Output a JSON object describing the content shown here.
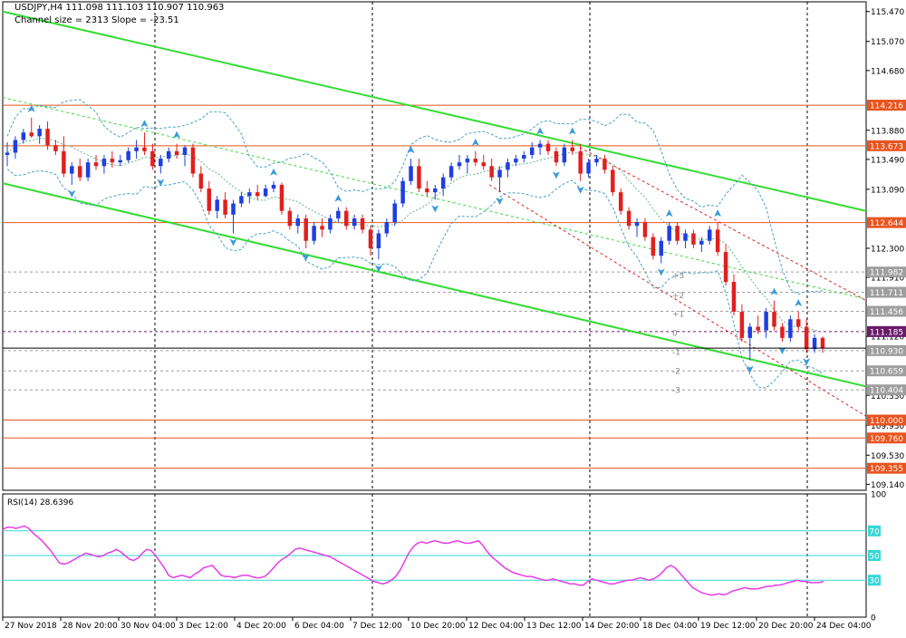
{
  "header": {
    "title": "USDJPY,H4  111.098 111.103 110.907 110.963",
    "channel": "Channel size = 2313 Slope = -23.51"
  },
  "chart_data": {
    "type": "candlestick",
    "symbol": "USDJPY",
    "timeframe": "H4",
    "ohlc_last": {
      "open": 111.098,
      "high": 111.103,
      "low": 110.907,
      "close": 110.963
    },
    "channel_size": 2313,
    "slope": -23.51,
    "price_axis_labels": [
      "115.470",
      "115.070",
      "114.680",
      "113.880",
      "113.490",
      "113.090",
      "112.300",
      "111.910",
      "111.120",
      "110.330",
      "109.930",
      "109.530",
      "109.140"
    ],
    "ylim": [
      109.06,
      115.6
    ],
    "time_labels": [
      "27 Nov 2018",
      "28 Nov 20:00",
      "30 Nov 04:00",
      "3 Dec 12:00",
      "4 Dec 20:00",
      "6 Dec 04:00",
      "7 Dec 12:00",
      "10 Dec 20:00",
      "12 Dec 04:00",
      "13 Dec 12:00",
      "14 Dec 20:00",
      "18 Dec 04:00",
      "19 Dec 12:00",
      "20 Dec 20:00",
      "24 Dec 04:00"
    ],
    "price_levels": [
      {
        "value": 114.216,
        "label": "114.216",
        "color": "#e8541e",
        "style": "solid"
      },
      {
        "value": 113.673,
        "label": "113.673",
        "color": "#e8541e",
        "style": "solid"
      },
      {
        "value": 112.644,
        "label": "112.644",
        "color": "#e8541e",
        "style": "solid"
      },
      {
        "value": 111.982,
        "label": "111.982",
        "color": "#9e9e9e",
        "style": "dashed"
      },
      {
        "value": 111.711,
        "label": "111.711",
        "color": "#9e9e9e",
        "style": "dashed"
      },
      {
        "value": 111.456,
        "label": "111.456",
        "color": "#9e9e9e",
        "style": "dashed"
      },
      {
        "value": 111.185,
        "label": "111.185",
        "color": "#6a1b6a",
        "style": "dashed"
      },
      {
        "value": 110.93,
        "label": "110.930",
        "color": "#9e9e9e",
        "style": "dashed"
      },
      {
        "value": 110.659,
        "label": "110.659",
        "color": "#9e9e9e",
        "style": "dashed"
      },
      {
        "value": 110.404,
        "label": "110.404",
        "color": "#9e9e9e",
        "style": "dashed"
      },
      {
        "value": 110.0,
        "label": "110.000",
        "color": "#e8541e",
        "style": "solid"
      },
      {
        "value": 109.76,
        "label": "109.760",
        "color": "#e8541e",
        "style": "solid"
      },
      {
        "value": 109.355,
        "label": "109.355",
        "color": "#e8541e",
        "style": "solid"
      }
    ],
    "current_price": 110.963,
    "fib_labels": [
      "+3",
      "+2",
      "+1",
      "0",
      "-1",
      "-2",
      "-3"
    ],
    "fib_values": [
      111.935,
      111.67,
      111.42,
      111.165,
      110.91,
      110.655,
      110.4
    ],
    "candles": [
      [
        113.55,
        113.72,
        113.4,
        113.58
      ],
      [
        113.58,
        113.8,
        113.5,
        113.75
      ],
      [
        113.75,
        113.9,
        113.7,
        113.85
      ],
      [
        113.85,
        114.05,
        113.78,
        113.8
      ],
      [
        113.8,
        113.95,
        113.7,
        113.9
      ],
      [
        113.9,
        114.0,
        113.62,
        113.68
      ],
      [
        113.68,
        113.75,
        113.55,
        113.6
      ],
      [
        113.6,
        113.8,
        113.25,
        113.3
      ],
      [
        113.3,
        113.45,
        113.15,
        113.4
      ],
      [
        113.4,
        113.5,
        113.2,
        113.25
      ],
      [
        113.25,
        113.5,
        113.2,
        113.45
      ],
      [
        113.45,
        113.55,
        113.35,
        113.4
      ],
      [
        113.4,
        113.55,
        113.3,
        113.5
      ],
      [
        113.5,
        113.6,
        113.38,
        113.45
      ],
      [
        113.45,
        113.55,
        113.4,
        113.48
      ],
      [
        113.48,
        113.65,
        113.45,
        113.6
      ],
      [
        113.6,
        113.75,
        113.5,
        113.65
      ],
      [
        113.65,
        113.85,
        113.55,
        113.6
      ],
      [
        113.6,
        113.7,
        113.35,
        113.4
      ],
      [
        113.4,
        113.55,
        113.3,
        113.5
      ],
      [
        113.5,
        113.65,
        113.45,
        113.6
      ],
      [
        113.6,
        113.7,
        113.5,
        113.55
      ],
      [
        113.55,
        113.68,
        113.4,
        113.65
      ],
      [
        113.65,
        113.7,
        113.25,
        113.3
      ],
      [
        113.3,
        113.4,
        113.05,
        113.1
      ],
      [
        113.1,
        113.2,
        112.75,
        112.8
      ],
      [
        112.8,
        113.0,
        112.7,
        112.95
      ],
      [
        112.95,
        113.05,
        112.7,
        112.75
      ],
      [
        112.75,
        112.95,
        112.5,
        112.9
      ],
      [
        112.9,
        113.05,
        112.85,
        113.0
      ],
      [
        113.0,
        113.1,
        112.9,
        113.05
      ],
      [
        113.05,
        113.15,
        112.95,
        113.0
      ],
      [
        113.0,
        113.15,
        112.98,
        113.1
      ],
      [
        113.1,
        113.2,
        113.05,
        113.15
      ],
      [
        113.15,
        113.18,
        112.75,
        112.8
      ],
      [
        112.8,
        112.85,
        112.55,
        112.6
      ],
      [
        112.6,
        112.75,
        112.5,
        112.7
      ],
      [
        112.7,
        112.75,
        112.3,
        112.4
      ],
      [
        112.4,
        112.65,
        112.35,
        112.6
      ],
      [
        112.6,
        112.7,
        112.45,
        112.55
      ],
      [
        112.55,
        112.75,
        112.5,
        112.7
      ],
      [
        112.7,
        112.85,
        112.65,
        112.8
      ],
      [
        112.8,
        112.85,
        112.55,
        112.6
      ],
      [
        112.6,
        112.75,
        112.55,
        112.7
      ],
      [
        112.7,
        112.75,
        112.5,
        112.55
      ],
      [
        112.55,
        112.6,
        112.2,
        112.3
      ],
      [
        112.3,
        112.55,
        112.15,
        112.5
      ],
      [
        112.5,
        112.7,
        112.45,
        112.65
      ],
      [
        112.65,
        112.95,
        112.6,
        112.9
      ],
      [
        112.9,
        113.25,
        112.85,
        113.2
      ],
      [
        113.2,
        113.5,
        113.15,
        113.4
      ],
      [
        113.4,
        113.5,
        113.05,
        113.1
      ],
      [
        113.1,
        113.2,
        113.0,
        113.05
      ],
      [
        113.05,
        113.15,
        112.95,
        113.1
      ],
      [
        113.1,
        113.3,
        113.0,
        113.25
      ],
      [
        113.25,
        113.45,
        113.2,
        113.4
      ],
      [
        113.4,
        113.55,
        113.35,
        113.45
      ],
      [
        113.45,
        113.55,
        113.3,
        113.5
      ],
      [
        113.5,
        113.6,
        113.4,
        113.45
      ],
      [
        113.45,
        113.55,
        113.35,
        113.4
      ],
      [
        113.4,
        113.5,
        113.2,
        113.25
      ],
      [
        113.25,
        113.4,
        113.05,
        113.35
      ],
      [
        113.35,
        113.5,
        113.25,
        113.45
      ],
      [
        113.45,
        113.55,
        113.4,
        113.5
      ],
      [
        113.5,
        113.6,
        113.45,
        113.55
      ],
      [
        113.55,
        113.72,
        113.5,
        113.65
      ],
      [
        113.65,
        113.75,
        113.55,
        113.7
      ],
      [
        113.7,
        113.75,
        113.55,
        113.6
      ],
      [
        113.6,
        113.65,
        113.4,
        113.45
      ],
      [
        113.45,
        113.7,
        113.4,
        113.65
      ],
      [
        113.65,
        113.75,
        113.55,
        113.6
      ],
      [
        113.6,
        113.7,
        113.2,
        113.3
      ],
      [
        113.3,
        113.5,
        113.25,
        113.45
      ],
      [
        113.45,
        113.55,
        113.4,
        113.5
      ],
      [
        113.5,
        113.55,
        113.3,
        113.35
      ],
      [
        113.35,
        113.4,
        113.0,
        113.05
      ],
      [
        113.05,
        113.1,
        112.75,
        112.8
      ],
      [
        112.8,
        112.85,
        112.55,
        112.6
      ],
      [
        112.6,
        112.7,
        112.45,
        112.65
      ],
      [
        112.65,
        112.7,
        112.4,
        112.45
      ],
      [
        112.45,
        112.5,
        112.15,
        112.2
      ],
      [
        112.2,
        112.45,
        112.1,
        112.4
      ],
      [
        112.4,
        112.65,
        112.35,
        112.6
      ],
      [
        112.6,
        112.65,
        112.35,
        112.4
      ],
      [
        112.4,
        112.55,
        112.3,
        112.5
      ],
      [
        112.5,
        112.55,
        112.3,
        112.35
      ],
      [
        112.35,
        112.45,
        112.25,
        112.4
      ],
      [
        112.4,
        112.6,
        112.35,
        112.55
      ],
      [
        112.55,
        112.65,
        112.2,
        112.25
      ],
      [
        112.25,
        112.35,
        111.8,
        111.85
      ],
      [
        111.85,
        111.95,
        111.4,
        111.45
      ],
      [
        111.45,
        111.55,
        111.05,
        111.1
      ],
      [
        111.1,
        111.3,
        110.8,
        111.25
      ],
      [
        111.25,
        111.4,
        111.15,
        111.2
      ],
      [
        111.2,
        111.5,
        111.1,
        111.45
      ],
      [
        111.45,
        111.6,
        111.2,
        111.25
      ],
      [
        111.25,
        111.3,
        111.05,
        111.1
      ],
      [
        111.1,
        111.4,
        111.05,
        111.35
      ],
      [
        111.35,
        111.45,
        111.2,
        111.25
      ],
      [
        111.25,
        111.35,
        110.9,
        110.95
      ],
      [
        110.95,
        111.15,
        110.9,
        111.1
      ],
      [
        111.1,
        111.12,
        110.9,
        110.96
      ]
    ],
    "rsi": {
      "label": "RSI(14) 28.6396",
      "ylim": [
        0,
        100
      ],
      "axis_labels": [
        "100",
        "70",
        "50",
        "30",
        "0"
      ],
      "levels": [
        70,
        50,
        30
      ],
      "values": [
        71,
        73,
        73,
        72,
        73,
        74,
        72,
        68,
        65,
        62,
        58,
        54,
        49,
        44,
        43,
        44,
        46,
        48,
        50,
        52,
        51,
        50,
        49,
        50,
        52,
        53,
        55,
        53,
        50,
        47,
        46,
        48,
        52,
        55,
        54,
        50,
        45,
        40,
        34,
        32,
        33,
        34,
        33,
        32,
        35,
        37,
        40,
        41,
        42,
        38,
        34,
        33,
        33,
        32,
        33,
        34,
        34,
        33,
        32,
        32,
        33,
        36,
        40,
        44,
        47,
        49,
        52,
        55,
        56,
        55,
        54,
        53,
        52,
        51,
        50,
        49,
        47,
        45,
        43,
        41,
        39,
        37,
        35,
        33,
        31,
        29,
        28,
        27,
        28,
        30,
        33,
        38,
        45,
        52,
        57,
        60,
        61,
        60,
        61,
        62,
        61,
        60,
        60,
        61,
        62,
        61,
        60,
        60,
        61,
        62,
        58,
        53,
        49,
        46,
        43,
        40,
        38,
        36,
        35,
        34,
        33,
        33,
        32,
        31,
        30,
        30,
        31,
        30,
        29,
        28,
        27,
        27,
        26,
        26,
        29,
        31,
        30,
        29,
        28,
        27,
        27,
        28,
        29,
        30,
        30,
        31,
        32,
        31,
        30,
        31,
        33,
        36,
        40,
        42,
        40,
        36,
        32,
        28,
        24,
        22,
        20,
        19,
        18,
        18,
        19,
        18,
        19,
        21,
        22,
        23,
        24,
        23,
        23,
        23,
        24,
        25,
        25,
        26,
        26,
        27,
        28,
        29,
        30,
        29,
        29,
        28,
        28,
        28,
        29
      ]
    }
  }
}
